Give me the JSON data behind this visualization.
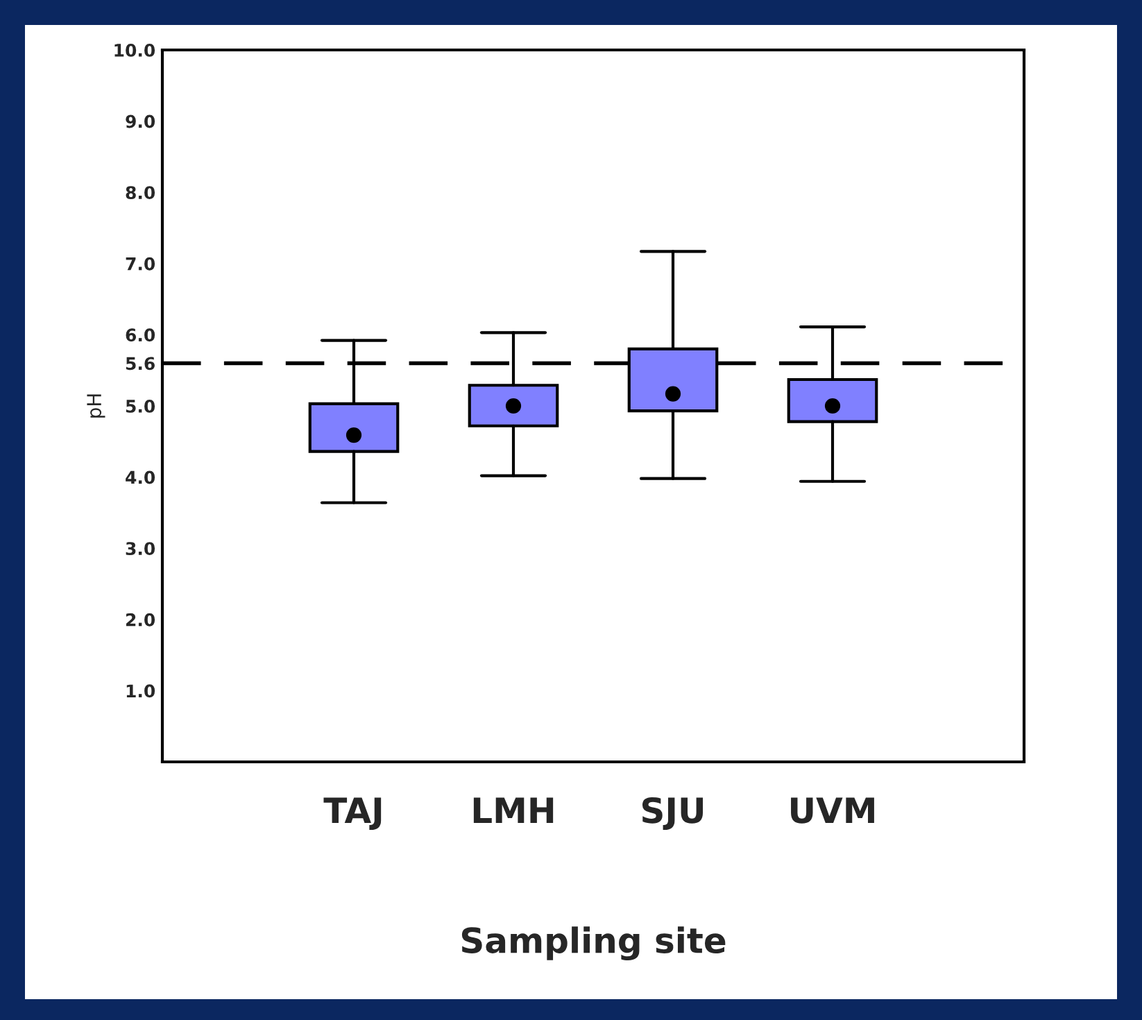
{
  "chart_data": {
    "type": "box",
    "xlabel": "Sampling site",
    "ylabel": "pH",
    "categories": [
      "TAJ",
      "LMH",
      "SJU",
      "UVM"
    ],
    "boxes": [
      {
        "low": 3.64,
        "q1": 4.36,
        "median": 4.59,
        "q3": 5.03,
        "high": 5.92
      },
      {
        "low": 4.02,
        "q1": 4.72,
        "median": 5.0,
        "q3": 5.29,
        "high": 6.03
      },
      {
        "low": 3.98,
        "q1": 4.93,
        "median": 5.17,
        "q3": 5.8,
        "high": 7.17
      },
      {
        "low": 3.94,
        "q1": 4.78,
        "median": 5.0,
        "q3": 5.37,
        "high": 6.11
      }
    ],
    "color": "#8080ff",
    "ylim": [
      0,
      10
    ],
    "yticks": [
      {
        "value": 1,
        "label": "1.0"
      },
      {
        "value": 2,
        "label": "2.0"
      },
      {
        "value": 3,
        "label": "3.0"
      },
      {
        "value": 4,
        "label": "4.0"
      },
      {
        "value": 5,
        "label": "5.0"
      },
      {
        "value": 5.6,
        "label": "5.6"
      },
      {
        "value": 6,
        "label": "6.0"
      },
      {
        "value": 7,
        "label": "7.0"
      },
      {
        "value": 8,
        "label": "8.0"
      },
      {
        "value": 9,
        "label": "9.0"
      },
      {
        "value": 10,
        "label": "10.0"
      }
    ],
    "ref_lines": [
      {
        "axis": "y",
        "value": 5.6,
        "line_style": "dashed",
        "color": "#000000"
      }
    ],
    "grid": false
  }
}
